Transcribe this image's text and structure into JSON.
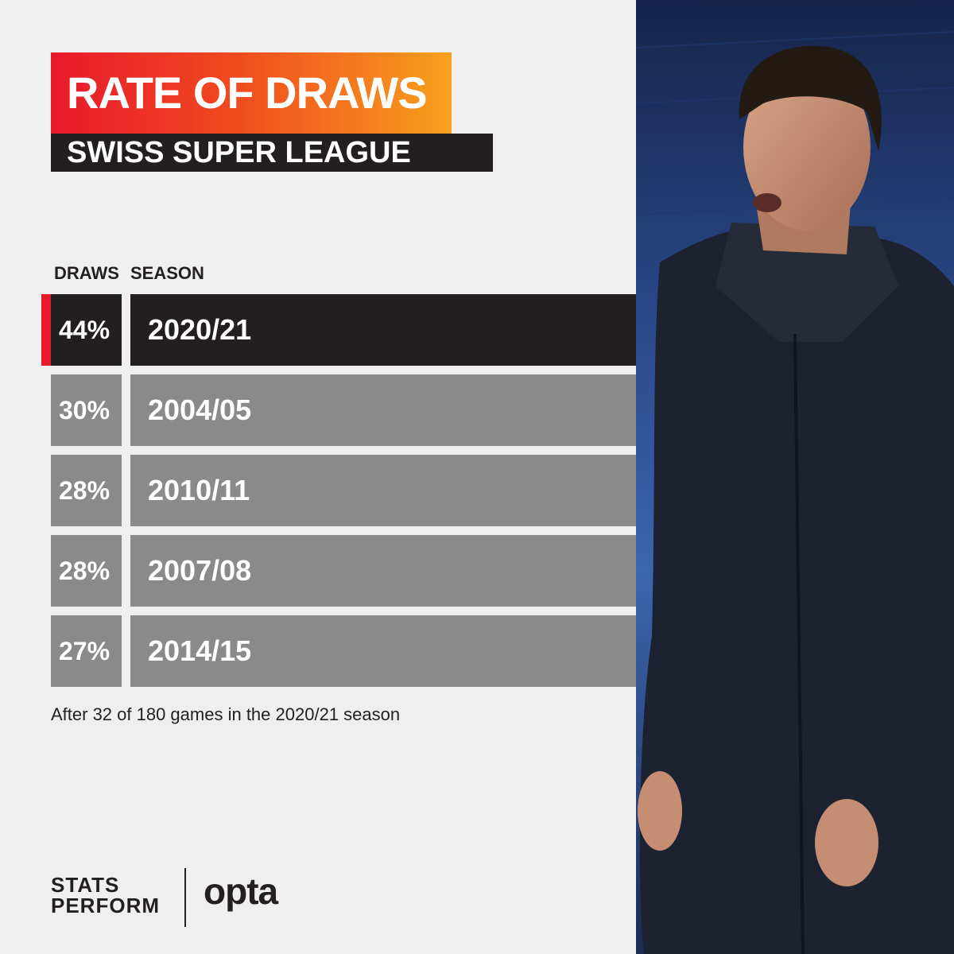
{
  "header": {
    "title": "RATE OF DRAWS",
    "subtitle": "SWISS SUPER LEAGUE"
  },
  "columns": {
    "draws": "DRAWS",
    "season": "SEASON"
  },
  "chart_data": {
    "type": "table",
    "columns": [
      "DRAWS",
      "SEASON"
    ],
    "rows": [
      {
        "draws": "44%",
        "season": "2020/21",
        "highlight": true
      },
      {
        "draws": "30%",
        "season": "2004/05",
        "highlight": false
      },
      {
        "draws": "28%",
        "season": "2010/11",
        "highlight": false
      },
      {
        "draws": "28%",
        "season": "2007/08",
        "highlight": false
      },
      {
        "draws": "27%",
        "season": "2014/15",
        "highlight": false
      }
    ],
    "values": [
      44,
      30,
      28,
      28,
      27
    ]
  },
  "footnote": "After 32 of 180 games in the 2020/21 season",
  "logos": {
    "stats_line1": "STATS",
    "stats_line2": "PERFORM",
    "opta": "opta"
  },
  "colors": {
    "accent": "#e8192c",
    "gradient_end": "#f8a11c",
    "dark_row": "#231f20",
    "grey_row": "#8a8a8a",
    "background": "#efefef"
  }
}
